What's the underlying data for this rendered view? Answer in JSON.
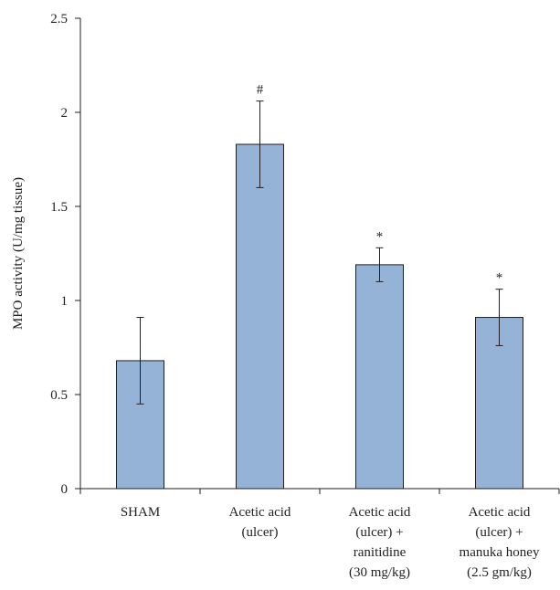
{
  "chart_data": {
    "type": "bar",
    "title": "",
    "xlabel": "",
    "ylabel": "MPO activity (U/mg tissue)",
    "ylim": [
      0,
      2.5
    ],
    "yticks": [
      "0",
      "0.5",
      "1",
      "1.5",
      "2",
      "2.5"
    ],
    "categories": [
      [
        "SHAM"
      ],
      [
        "Acetic acid",
        "(ulcer)"
      ],
      [
        "Acetic acid",
        "(ulcer) +",
        "ranitidine",
        "(30 mg/kg)"
      ],
      [
        "Acetic acid",
        "(ulcer) +",
        "manuka honey",
        "(2.5 gm/kg)"
      ]
    ],
    "values": [
      0.68,
      1.83,
      1.19,
      0.91
    ],
    "errors": [
      0.23,
      0.23,
      0.09,
      0.15
    ],
    "annotations": [
      "",
      "#",
      "*",
      "*"
    ],
    "bar_color": "#95b3d7",
    "bar_stroke": "#231f20",
    "grid": false,
    "legend": "none"
  }
}
